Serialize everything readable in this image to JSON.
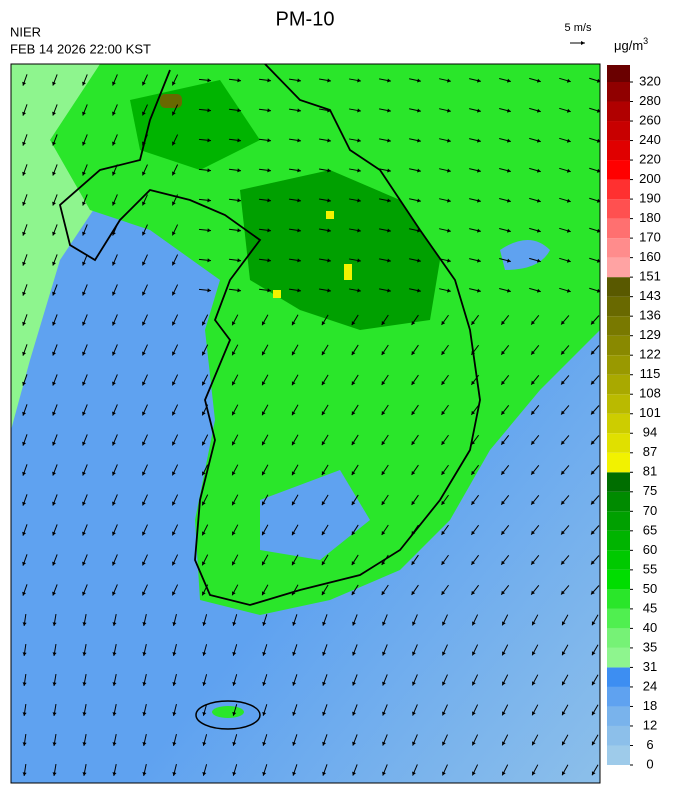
{
  "header": {
    "title": "PM-10",
    "agency": "NIER",
    "timestamp": "FEB 14 2026 22:00 KST"
  },
  "wind_scale": {
    "label": "5 m/s"
  },
  "colorbar": {
    "unit": {
      "base": "μg/m",
      "exponent": "3"
    },
    "levels": [
      0,
      6,
      12,
      18,
      24,
      31,
      35,
      40,
      45,
      50,
      55,
      60,
      65,
      70,
      75,
      81,
      87,
      94,
      101,
      108,
      115,
      122,
      129,
      136,
      143,
      151,
      160,
      170,
      180,
      190,
      200,
      220,
      240,
      260,
      280,
      320
    ],
    "colors": [
      "#9ecbea",
      "#8cbfea",
      "#79b3ec",
      "#5fa2f0",
      "#3d8ef2",
      "#8ef58e",
      "#76f276",
      "#50ef50",
      "#2ae62a",
      "#00dd00",
      "#00c900",
      "#00b400",
      "#00a000",
      "#008b00",
      "#006e00",
      "#f2f200",
      "#e0e000",
      "#cdcd00",
      "#baba00",
      "#a9a900",
      "#999900",
      "#898900",
      "#797900",
      "#696900",
      "#595900",
      "#ffa3a3",
      "#ff8c8c",
      "#ff7070",
      "#ff5050",
      "#ff3030",
      "#ff0000",
      "#e00000",
      "#c80000",
      "#b00000",
      "#900000",
      "#6a0000"
    ]
  }
}
